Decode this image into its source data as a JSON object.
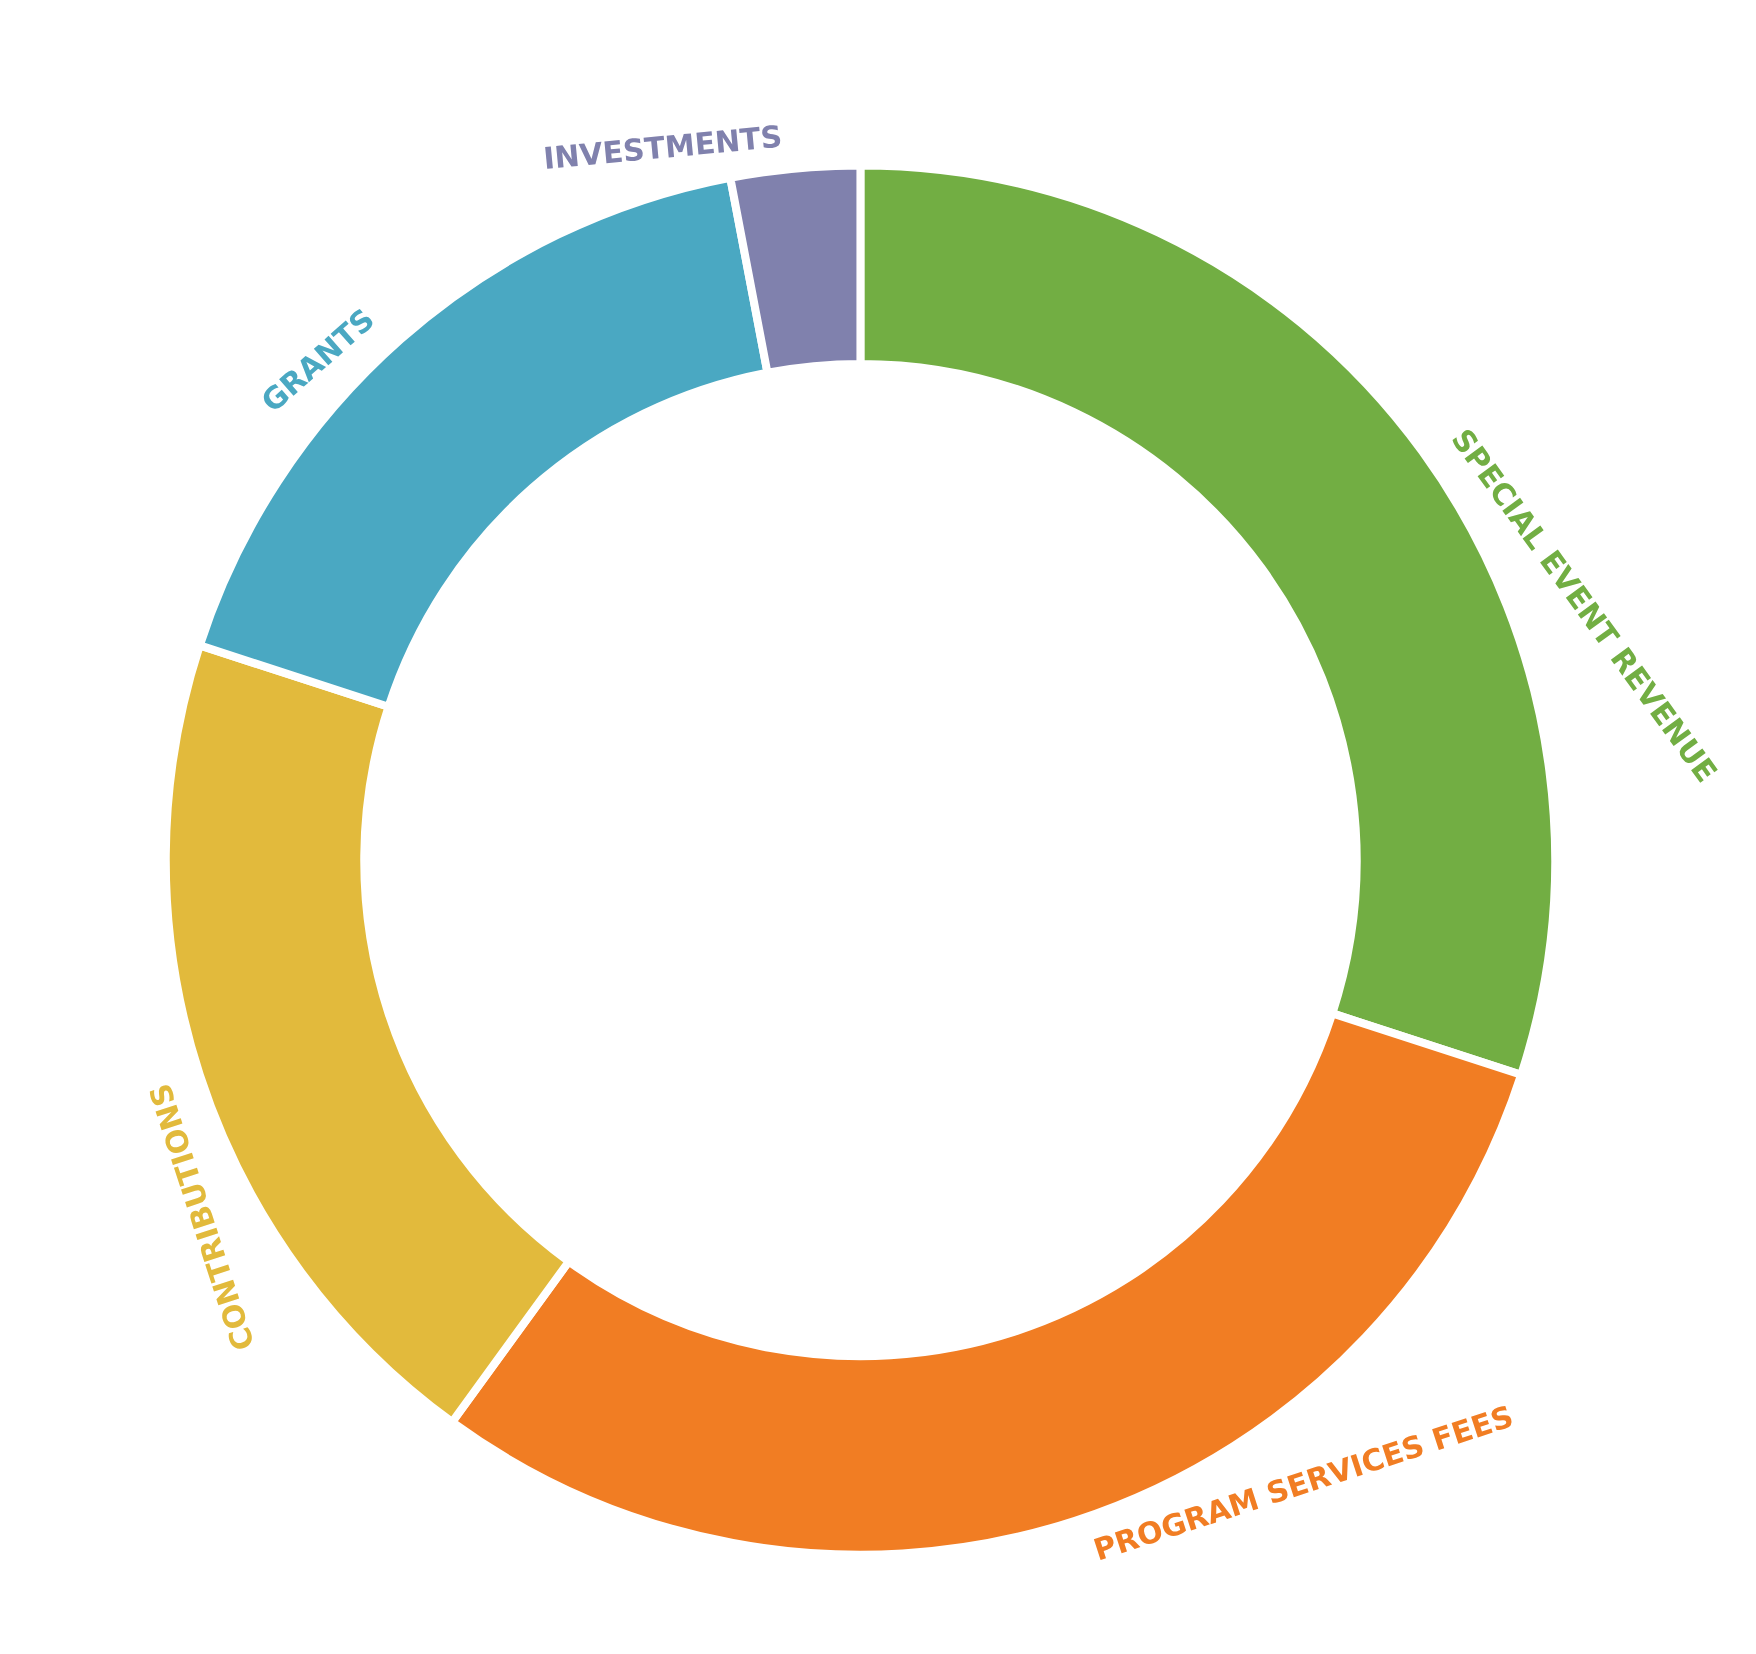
{
  "chart_data": {
    "type": "donut",
    "categories": [
      "SPECIAL EVENT REVENUE",
      "PROGRAM SERVICES FEES",
      "CONTRIBUTIONS",
      "GRANTS",
      "INVESTMENTS"
    ],
    "values": [
      30,
      30,
      20,
      17,
      3
    ],
    "colors": [
      "#72ae43",
      "#f17d23",
      "#e2ba3c",
      "#4aa8c2",
      "#8081ad"
    ]
  }
}
